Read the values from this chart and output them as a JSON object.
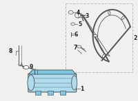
{
  "bg_color": "#f0f0ee",
  "white": "#ffffff",
  "light_blue": "#7ec8e3",
  "light_blue2": "#aedcee",
  "gray": "#aaaaaa",
  "dark_gray": "#555555",
  "mid_gray": "#888888",
  "box_border": "#bbbbbb",
  "label_color": "#222222",
  "label_fs": 5.5
}
